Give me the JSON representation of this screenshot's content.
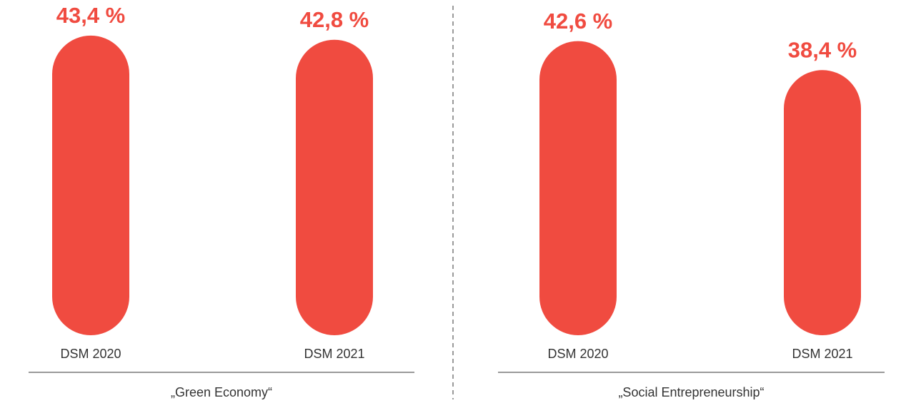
{
  "chart_data": [
    {
      "type": "bar",
      "title": "„Green Economy“",
      "categories": [
        "DSM 2020",
        "DSM 2021"
      ],
      "values": [
        43.4,
        42.8
      ],
      "value_labels": [
        "43,4 %",
        "42,8 %"
      ],
      "color": "#f04b40"
    },
    {
      "type": "bar",
      "title": "„Social Entrepreneurship“",
      "categories": [
        "DSM 2020",
        "DSM 2021"
      ],
      "values": [
        42.6,
        38.4
      ],
      "value_labels": [
        "42,6 %",
        "38,4 %"
      ],
      "color": "#f04b40"
    }
  ]
}
